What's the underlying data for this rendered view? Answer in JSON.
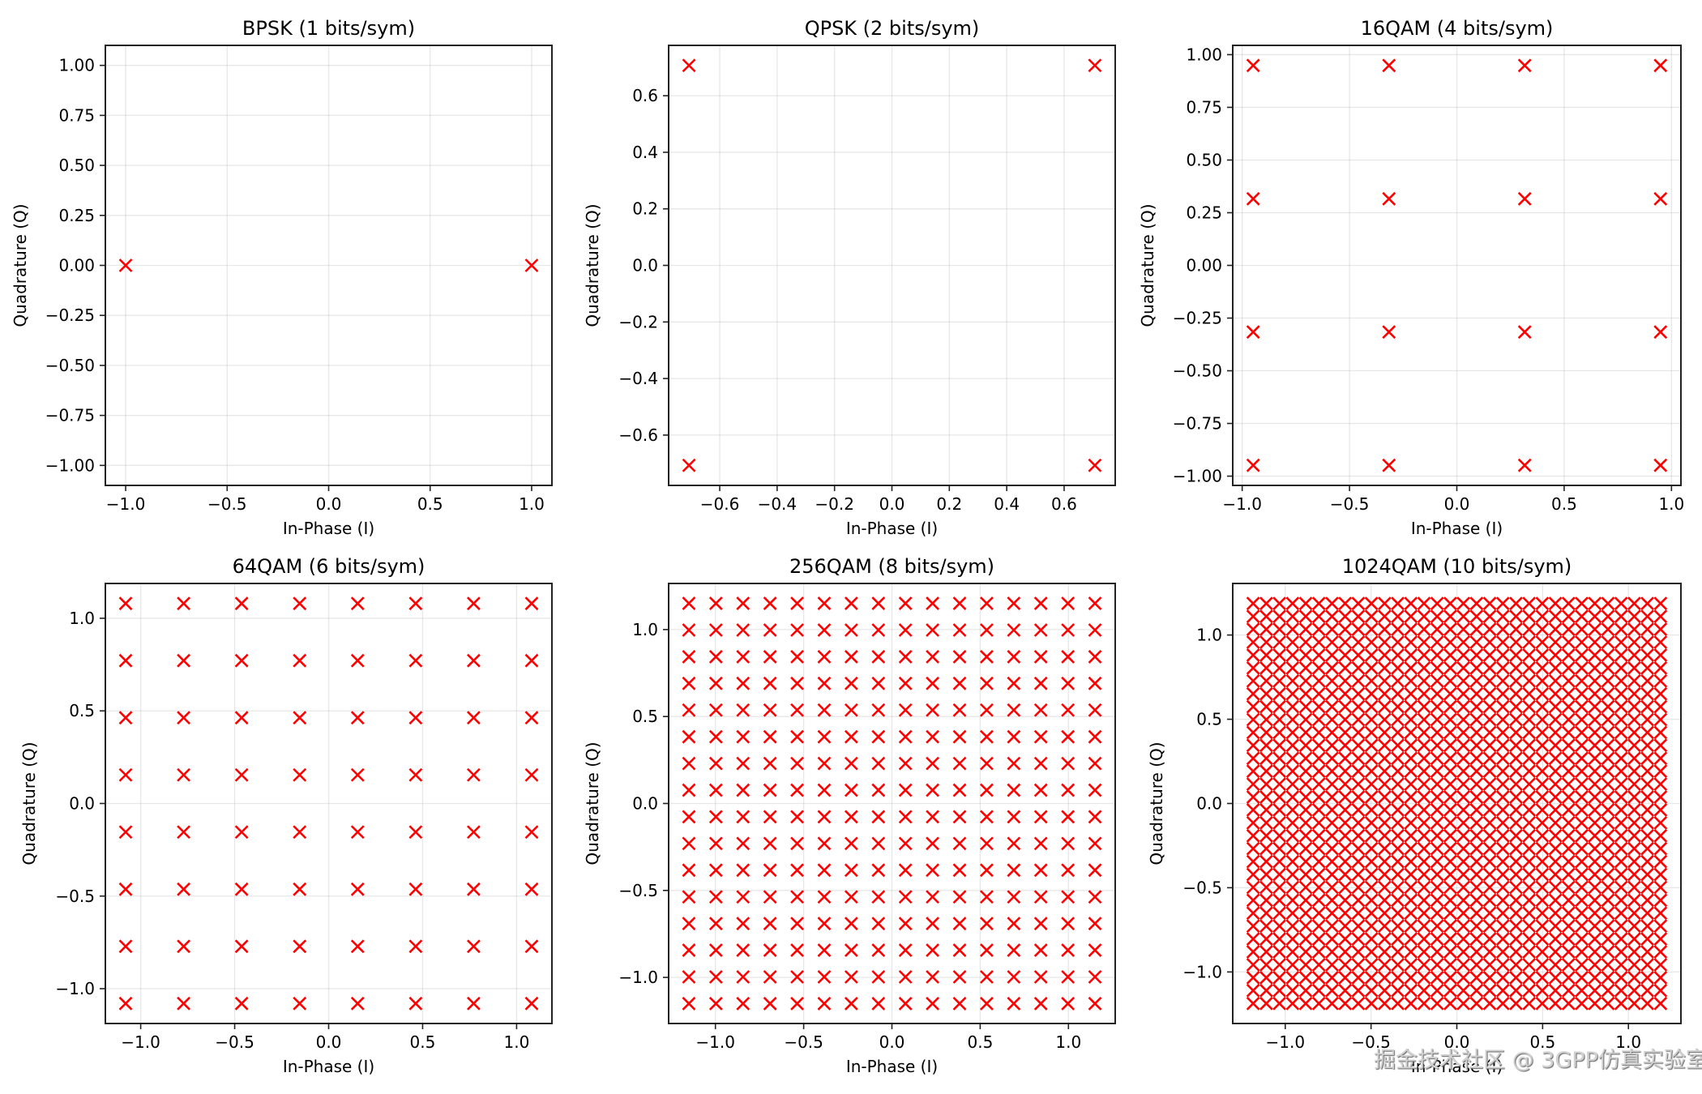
{
  "figure": {
    "watermark": "掘金技术社区 @ 3GPP仿真实验室"
  },
  "chart_data": [
    {
      "type": "scatter",
      "title": "BPSK (1 bits/sym)",
      "xlabel": "In-Phase (I)",
      "ylabel": "Quadrature (Q)",
      "xlim": [
        -1.1,
        1.1
      ],
      "ylim": [
        -1.1,
        1.1
      ],
      "xticks": [
        -1.0,
        -0.5,
        0.0,
        0.5,
        1.0
      ],
      "xtick_labels": [
        "−1.0",
        "−0.5",
        "0.0",
        "0.5",
        "1.0"
      ],
      "yticks": [
        -1.0,
        -0.75,
        -0.5,
        -0.25,
        0.0,
        0.25,
        0.5,
        0.75,
        1.0
      ],
      "ytick_labels": [
        "−1.00",
        "−0.75",
        "−0.50",
        "−0.25",
        "0.00",
        "0.25",
        "0.50",
        "0.75",
        "1.00"
      ],
      "grid": true,
      "marker": "x",
      "color": "#ff0000",
      "points": {
        "I": [
          -1.0,
          1.0
        ],
        "Q": [
          0.0,
          0.0
        ]
      }
    },
    {
      "type": "scatter",
      "title": "QPSK (2 bits/sym)",
      "xlabel": "In-Phase (I)",
      "ylabel": "Quadrature (Q)",
      "xlim": [
        -0.778,
        0.778
      ],
      "ylim": [
        -0.778,
        0.778
      ],
      "xticks": [
        -0.6,
        -0.4,
        -0.2,
        0.0,
        0.2,
        0.4,
        0.6
      ],
      "xtick_labels": [
        "−0.6",
        "−0.4",
        "−0.2",
        "0.0",
        "0.2",
        "0.4",
        "0.6"
      ],
      "yticks": [
        -0.6,
        -0.4,
        -0.2,
        0.0,
        0.2,
        0.4,
        0.6
      ],
      "ytick_labels": [
        "−0.6",
        "−0.4",
        "−0.2",
        "0.0",
        "0.2",
        "0.4",
        "0.6"
      ],
      "grid": true,
      "marker": "x",
      "color": "#ff0000",
      "points": {
        "I": [
          -0.7071,
          0.7071,
          -0.7071,
          0.7071
        ],
        "Q": [
          0.7071,
          0.7071,
          -0.7071,
          -0.7071
        ]
      }
    },
    {
      "type": "scatter",
      "title": "16QAM (4 bits/sym)",
      "xlabel": "In-Phase (I)",
      "ylabel": "Quadrature (Q)",
      "xlim": [
        -1.044,
        1.044
      ],
      "ylim": [
        -1.044,
        1.044
      ],
      "xticks": [
        -1.0,
        -0.5,
        0.0,
        0.5,
        1.0
      ],
      "xtick_labels": [
        "−1.0",
        "−0.5",
        "0.0",
        "0.5",
        "1.0"
      ],
      "yticks": [
        -1.0,
        -0.75,
        -0.5,
        -0.25,
        0.0,
        0.25,
        0.5,
        0.75,
        1.0
      ],
      "ytick_labels": [
        "−1.00",
        "−0.75",
        "−0.50",
        "−0.25",
        "0.00",
        "0.25",
        "0.50",
        "0.75",
        "1.00"
      ],
      "grid": true,
      "marker": "x",
      "color": "#ff0000",
      "grid_levels": [
        -0.9487,
        -0.3162,
        0.3162,
        0.9487
      ]
    },
    {
      "type": "scatter",
      "title": "64QAM (6 bits/sym)",
      "xlabel": "In-Phase (I)",
      "ylabel": "Quadrature (Q)",
      "xlim": [
        -1.188,
        1.188
      ],
      "ylim": [
        -1.188,
        1.188
      ],
      "xticks": [
        -1.0,
        -0.5,
        0.0,
        0.5,
        1.0
      ],
      "xtick_labels": [
        "−1.0",
        "−0.5",
        "0.0",
        "0.5",
        "1.0"
      ],
      "yticks": [
        -1.0,
        -0.5,
        0.0,
        0.5,
        1.0
      ],
      "ytick_labels": [
        "−1.0",
        "−0.5",
        "0.0",
        "0.5",
        "1.0"
      ],
      "grid": true,
      "marker": "x",
      "color": "#ff0000",
      "grid_levels": [
        -1.0801,
        -0.7715,
        -0.4629,
        -0.1543,
        0.1543,
        0.4629,
        0.7715,
        1.0801
      ]
    },
    {
      "type": "scatter",
      "title": "256QAM (8 bits/sym)",
      "xlabel": "In-Phase (I)",
      "ylabel": "Quadrature (Q)",
      "xlim": [
        -1.265,
        1.265
      ],
      "ylim": [
        -1.265,
        1.265
      ],
      "xticks": [
        -1.0,
        -0.5,
        0.0,
        0.5,
        1.0
      ],
      "xtick_labels": [
        "−1.0",
        "−0.5",
        "0.0",
        "0.5",
        "1.0"
      ],
      "yticks": [
        -1.0,
        -0.5,
        0.0,
        0.5,
        1.0
      ],
      "ytick_labels": [
        "−1.0",
        "−0.5",
        "0.0",
        "0.5",
        "1.0"
      ],
      "grid": true,
      "marker": "x",
      "color": "#ff0000",
      "grid_levels": [
        -1.1504,
        -0.9971,
        -0.8437,
        -0.6903,
        -0.5369,
        -0.3835,
        -0.2301,
        -0.0767,
        0.0767,
        0.2301,
        0.3835,
        0.5369,
        0.6903,
        0.8437,
        0.9971,
        1.1504
      ]
    },
    {
      "type": "scatter",
      "title": "1024QAM (10 bits/sym)",
      "xlabel": "In-Phase (I)",
      "ylabel": "Quadrature (Q)",
      "xlim": [
        -1.306,
        1.306
      ],
      "ylim": [
        -1.306,
        1.306
      ],
      "xticks": [
        -1.0,
        -0.5,
        0.0,
        0.5,
        1.0
      ],
      "xtick_labels": [
        "−1.0",
        "−0.5",
        "0.0",
        "0.5",
        "1.0"
      ],
      "yticks": [
        -1.0,
        -0.5,
        0.0,
        0.5,
        1.0
      ],
      "ytick_labels": [
        "−1.0",
        "−0.5",
        "0.0",
        "0.5",
        "1.0"
      ],
      "grid": true,
      "marker": "x",
      "color": "#ff0000",
      "grid_levels_formula": "(2k-31)/sqrt(682), k=0..31",
      "levels_per_axis": 32
    }
  ]
}
